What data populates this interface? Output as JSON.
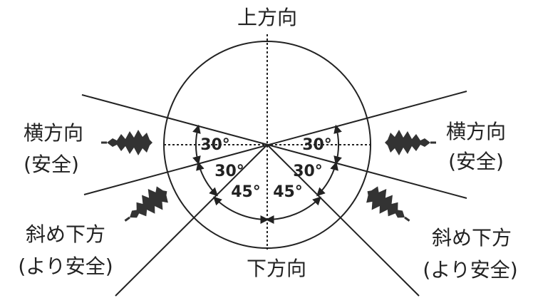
{
  "directions": {
    "up": "上方向",
    "down": "下方向",
    "side_left": {
      "label": "横方向",
      "note": "(安全)"
    },
    "side_right": {
      "label": "横方向",
      "note": "(安全)"
    },
    "diag_left": {
      "label": "斜め下方",
      "note": "(より安全)"
    },
    "diag_right": {
      "label": "斜め下方",
      "note": "(より安全)"
    }
  },
  "angles": {
    "side_left": "30°",
    "side_right": "30°",
    "lower_left": "30°",
    "lower_right": "30°",
    "down_left": "45°",
    "down_right": "45°"
  }
}
